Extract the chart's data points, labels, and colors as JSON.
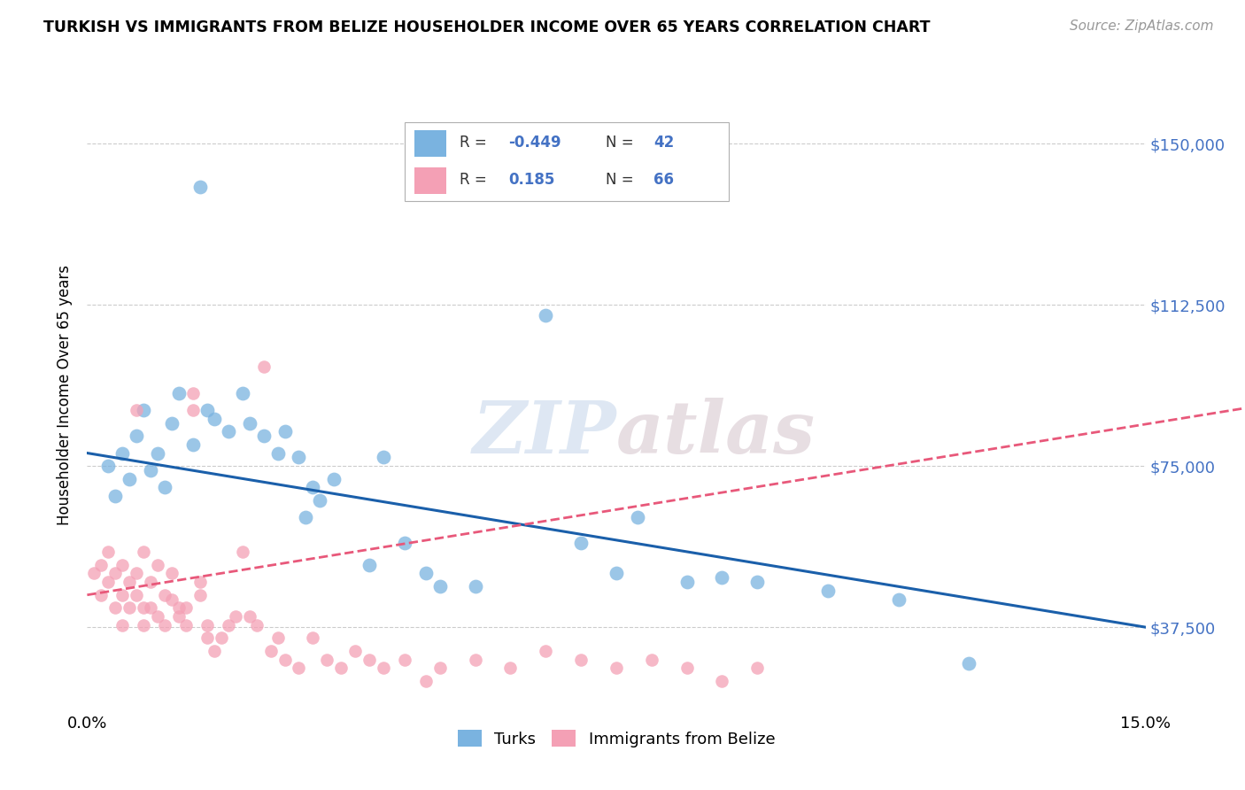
{
  "title": "TURKISH VS IMMIGRANTS FROM BELIZE HOUSEHOLDER INCOME OVER 65 YEARS CORRELATION CHART",
  "source": "Source: ZipAtlas.com",
  "ylabel": "Householder Income Over 65 years",
  "y_ticks": [
    37500,
    75000,
    112500,
    150000
  ],
  "y_tick_labels": [
    "$37,500",
    "$75,000",
    "$112,500",
    "$150,000"
  ],
  "xlim": [
    0.0,
    0.15
  ],
  "ylim": [
    18000,
    165000
  ],
  "turks_R": "-0.449",
  "turks_N": "42",
  "belize_R": "0.185",
  "belize_N": "66",
  "turks_color": "#7ab3e0",
  "belize_color": "#f4a0b5",
  "turks_line_color": "#1a5faa",
  "belize_line_color": "#e8587a",
  "watermark": "ZIPatlas",
  "turks_x": [
    0.003,
    0.004,
    0.005,
    0.006,
    0.007,
    0.008,
    0.009,
    0.01,
    0.011,
    0.012,
    0.013,
    0.015,
    0.016,
    0.017,
    0.018,
    0.02,
    0.022,
    0.023,
    0.025,
    0.027,
    0.028,
    0.03,
    0.031,
    0.032,
    0.033,
    0.035,
    0.04,
    0.042,
    0.045,
    0.048,
    0.05,
    0.055,
    0.065,
    0.07,
    0.075,
    0.078,
    0.085,
    0.09,
    0.095,
    0.105,
    0.115,
    0.125
  ],
  "turks_y": [
    75000,
    68000,
    78000,
    72000,
    82000,
    88000,
    74000,
    78000,
    70000,
    85000,
    92000,
    80000,
    140000,
    88000,
    86000,
    83000,
    92000,
    85000,
    82000,
    78000,
    83000,
    77000,
    63000,
    70000,
    67000,
    72000,
    52000,
    77000,
    57000,
    50000,
    47000,
    47000,
    110000,
    57000,
    50000,
    63000,
    48000,
    49000,
    48000,
    46000,
    44000,
    29000
  ],
  "belize_x": [
    0.001,
    0.002,
    0.002,
    0.003,
    0.003,
    0.004,
    0.004,
    0.005,
    0.005,
    0.005,
    0.006,
    0.006,
    0.007,
    0.007,
    0.007,
    0.008,
    0.008,
    0.008,
    0.009,
    0.009,
    0.01,
    0.01,
    0.011,
    0.011,
    0.012,
    0.012,
    0.013,
    0.013,
    0.014,
    0.014,
    0.015,
    0.015,
    0.016,
    0.016,
    0.017,
    0.017,
    0.018,
    0.019,
    0.02,
    0.021,
    0.022,
    0.023,
    0.024,
    0.025,
    0.026,
    0.027,
    0.028,
    0.03,
    0.032,
    0.034,
    0.036,
    0.038,
    0.04,
    0.042,
    0.045,
    0.048,
    0.05,
    0.055,
    0.06,
    0.065,
    0.07,
    0.075,
    0.08,
    0.085,
    0.09,
    0.095
  ],
  "belize_y": [
    50000,
    52000,
    45000,
    48000,
    55000,
    42000,
    50000,
    45000,
    52000,
    38000,
    48000,
    42000,
    88000,
    50000,
    45000,
    55000,
    42000,
    38000,
    48000,
    42000,
    40000,
    52000,
    45000,
    38000,
    50000,
    44000,
    40000,
    42000,
    38000,
    42000,
    88000,
    92000,
    45000,
    48000,
    35000,
    38000,
    32000,
    35000,
    38000,
    40000,
    55000,
    40000,
    38000,
    98000,
    32000,
    35000,
    30000,
    28000,
    35000,
    30000,
    28000,
    32000,
    30000,
    28000,
    30000,
    25000,
    28000,
    30000,
    28000,
    32000,
    30000,
    28000,
    30000,
    28000,
    25000,
    28000
  ]
}
